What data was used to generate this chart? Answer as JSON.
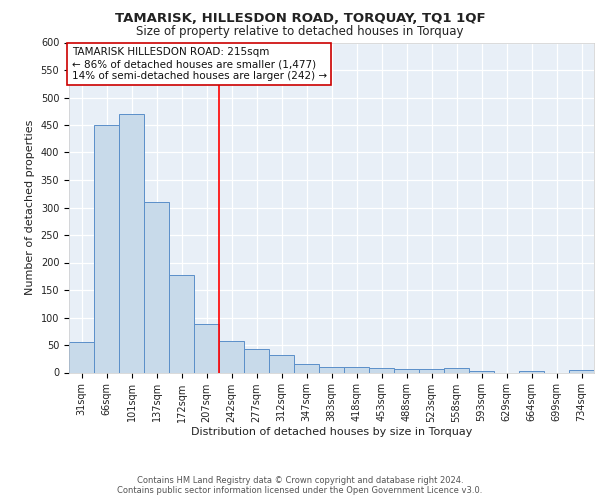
{
  "title1": "TAMARISK, HILLESDON ROAD, TORQUAY, TQ1 1QF",
  "title2": "Size of property relative to detached houses in Torquay",
  "xlabel": "Distribution of detached houses by size in Torquay",
  "ylabel": "Number of detached properties",
  "categories": [
    "31sqm",
    "66sqm",
    "101sqm",
    "137sqm",
    "172sqm",
    "207sqm",
    "242sqm",
    "277sqm",
    "312sqm",
    "347sqm",
    "383sqm",
    "418sqm",
    "453sqm",
    "488sqm",
    "523sqm",
    "558sqm",
    "593sqm",
    "629sqm",
    "664sqm",
    "699sqm",
    "734sqm"
  ],
  "values": [
    55,
    450,
    470,
    310,
    178,
    88,
    57,
    42,
    32,
    16,
    10,
    10,
    9,
    6,
    6,
    8,
    2,
    0,
    3,
    0,
    5
  ],
  "bar_color": "#c8daea",
  "bar_edge_color": "#5b8fc9",
  "red_line_x": 5.5,
  "annotation_title": "TAMARISK HILLESDON ROAD: 215sqm",
  "annotation_line1": "← 86% of detached houses are smaller (1,477)",
  "annotation_line2": "14% of semi-detached houses are larger (242) →",
  "annotation_box_color": "#ffffff",
  "annotation_box_edge": "#cc0000",
  "ylim": [
    0,
    600
  ],
  "yticks": [
    0,
    50,
    100,
    150,
    200,
    250,
    300,
    350,
    400,
    450,
    500,
    550,
    600
  ],
  "footer1": "Contains HM Land Registry data © Crown copyright and database right 2024.",
  "footer2": "Contains public sector information licensed under the Open Government Licence v3.0.",
  "fig_bg_color": "#ffffff",
  "plot_bg_color": "#e8eff7",
  "title1_fontsize": 9.5,
  "title2_fontsize": 8.5,
  "axis_label_fontsize": 8,
  "tick_fontsize": 7,
  "annotation_fontsize": 7.5,
  "footer_fontsize": 6
}
